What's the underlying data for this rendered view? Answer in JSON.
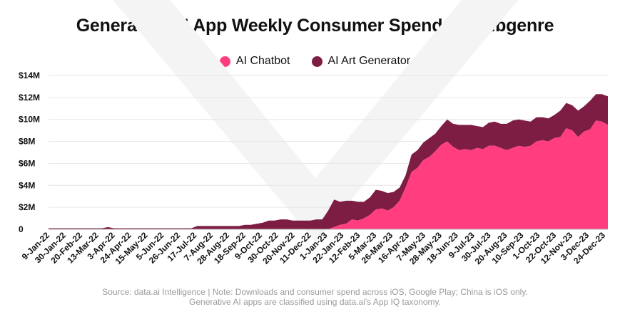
{
  "title": "Generative AI App Weekly Consumer Spend by Subgenre",
  "footer": {
    "line1": "Source: data.ai Intelligence | Note: Downloads and consumer spend across iOS, Google Play; China is iOS only.",
    "line2": "Generative AI apps are classified using data.ai's App IQ taxonomy."
  },
  "colors": {
    "chatbot": "#ff3d7f",
    "art": "#7d1d43",
    "axis": "#bbbbbb",
    "text": "#111111"
  },
  "chart_data": {
    "type": "area",
    "stacked": true,
    "legend_position": "top-center",
    "grid": true,
    "ylim": [
      0,
      14
    ],
    "y_ticks": [
      {
        "value": 0,
        "label": "0"
      },
      {
        "value": 2,
        "label": "$2M"
      },
      {
        "value": 4,
        "label": "$4M"
      },
      {
        "value": 6,
        "label": "$6M"
      },
      {
        "value": 8,
        "label": "$8M"
      },
      {
        "value": 10,
        "label": "$10M"
      },
      {
        "value": 12,
        "label": "$12M"
      },
      {
        "value": 14,
        "label": "$14M"
      }
    ],
    "x_tick_labels": [
      "9-Jan-22",
      "30-Jan-22",
      "20-Feb-22",
      "13-Mar-22",
      "3-Apr-22",
      "24-Apr-22",
      "15-May-22",
      "5-Jun-22",
      "26-Jun-22",
      "17-Jul-22",
      "7-Aug-22",
      "28-Aug-22",
      "18-Sep-22",
      "9-Oct-22",
      "30-Oct-22",
      "20-Nov-22",
      "11-Dec-22",
      "1-Jan-23",
      "22-Jan-23",
      "12-Feb-23",
      "5-Mar-23",
      "26-Mar-23",
      "16-Apr-23",
      "7-May-23",
      "28-May-23",
      "18-Jun-23",
      "9-Jul-23",
      "30-Jul-23",
      "20-Aug-23",
      "10-Sep-23",
      "1-Oct-23",
      "22-Oct-23",
      "12-Nov-23",
      "3-Dec-23",
      "24-Dec-23"
    ],
    "series": [
      {
        "name": "AI Chatbot",
        "color": "#ff3d7f",
        "values": [
          0,
          0,
          0,
          0,
          0,
          0,
          0,
          0,
          0,
          0,
          0,
          0,
          0,
          0,
          0,
          0,
          0,
          0,
          0,
          0,
          0,
          0,
          0,
          0,
          0,
          0,
          0,
          0,
          0,
          0,
          0,
          0,
          0,
          0,
          0,
          0,
          0,
          0,
          0,
          0,
          0,
          0,
          0,
          0,
          0,
          0,
          0,
          0,
          0.2,
          0.4,
          0.5,
          0.9,
          0.8,
          1.0,
          1.3,
          1.8,
          1.9,
          1.7,
          2.0,
          2.6,
          3.8,
          5.2,
          5.6,
          6.3,
          6.6,
          7.1,
          7.7,
          8.0,
          7.5,
          7.2,
          7.3,
          7.2,
          7.4,
          7.3,
          7.6,
          7.6,
          7.4,
          7.2,
          7.4,
          7.6,
          7.5,
          7.6,
          8.0,
          8.1,
          8.0,
          8.3,
          8.4,
          9.2,
          9.0,
          8.4,
          8.9,
          9.1,
          9.9,
          9.8,
          9.5
        ]
      },
      {
        "name": "AI Art Generator",
        "color": "#7d1d43",
        "values": [
          0.1,
          0.1,
          0.1,
          0.1,
          0.1,
          0.1,
          0.1,
          0.1,
          0.1,
          0.1,
          0.2,
          0.1,
          0.1,
          0.1,
          0.1,
          0.1,
          0.1,
          0.1,
          0.1,
          0.1,
          0.1,
          0.1,
          0.1,
          0.1,
          0.1,
          0.3,
          0.3,
          0.3,
          0.3,
          0.3,
          0.3,
          0.3,
          0.3,
          0.4,
          0.4,
          0.5,
          0.6,
          0.8,
          0.8,
          0.9,
          0.9,
          0.8,
          0.8,
          0.8,
          0.8,
          0.9,
          0.9,
          1.7,
          2.5,
          2.1,
          2.1,
          1.7,
          1.7,
          1.5,
          1.6,
          1.8,
          1.6,
          1.6,
          1.4,
          1.2,
          1.1,
          1.6,
          1.6,
          1.6,
          1.7,
          1.6,
          1.7,
          2.0,
          2.1,
          2.3,
          2.2,
          2.3,
          2.0,
          2.0,
          2.1,
          2.2,
          2.2,
          2.4,
          2.5,
          2.4,
          2.4,
          2.2,
          2.2,
          2.1,
          2.1,
          2.1,
          2.4,
          2.3,
          2.3,
          2.4,
          2.3,
          2.6,
          2.4,
          2.5,
          2.6
        ]
      }
    ]
  }
}
